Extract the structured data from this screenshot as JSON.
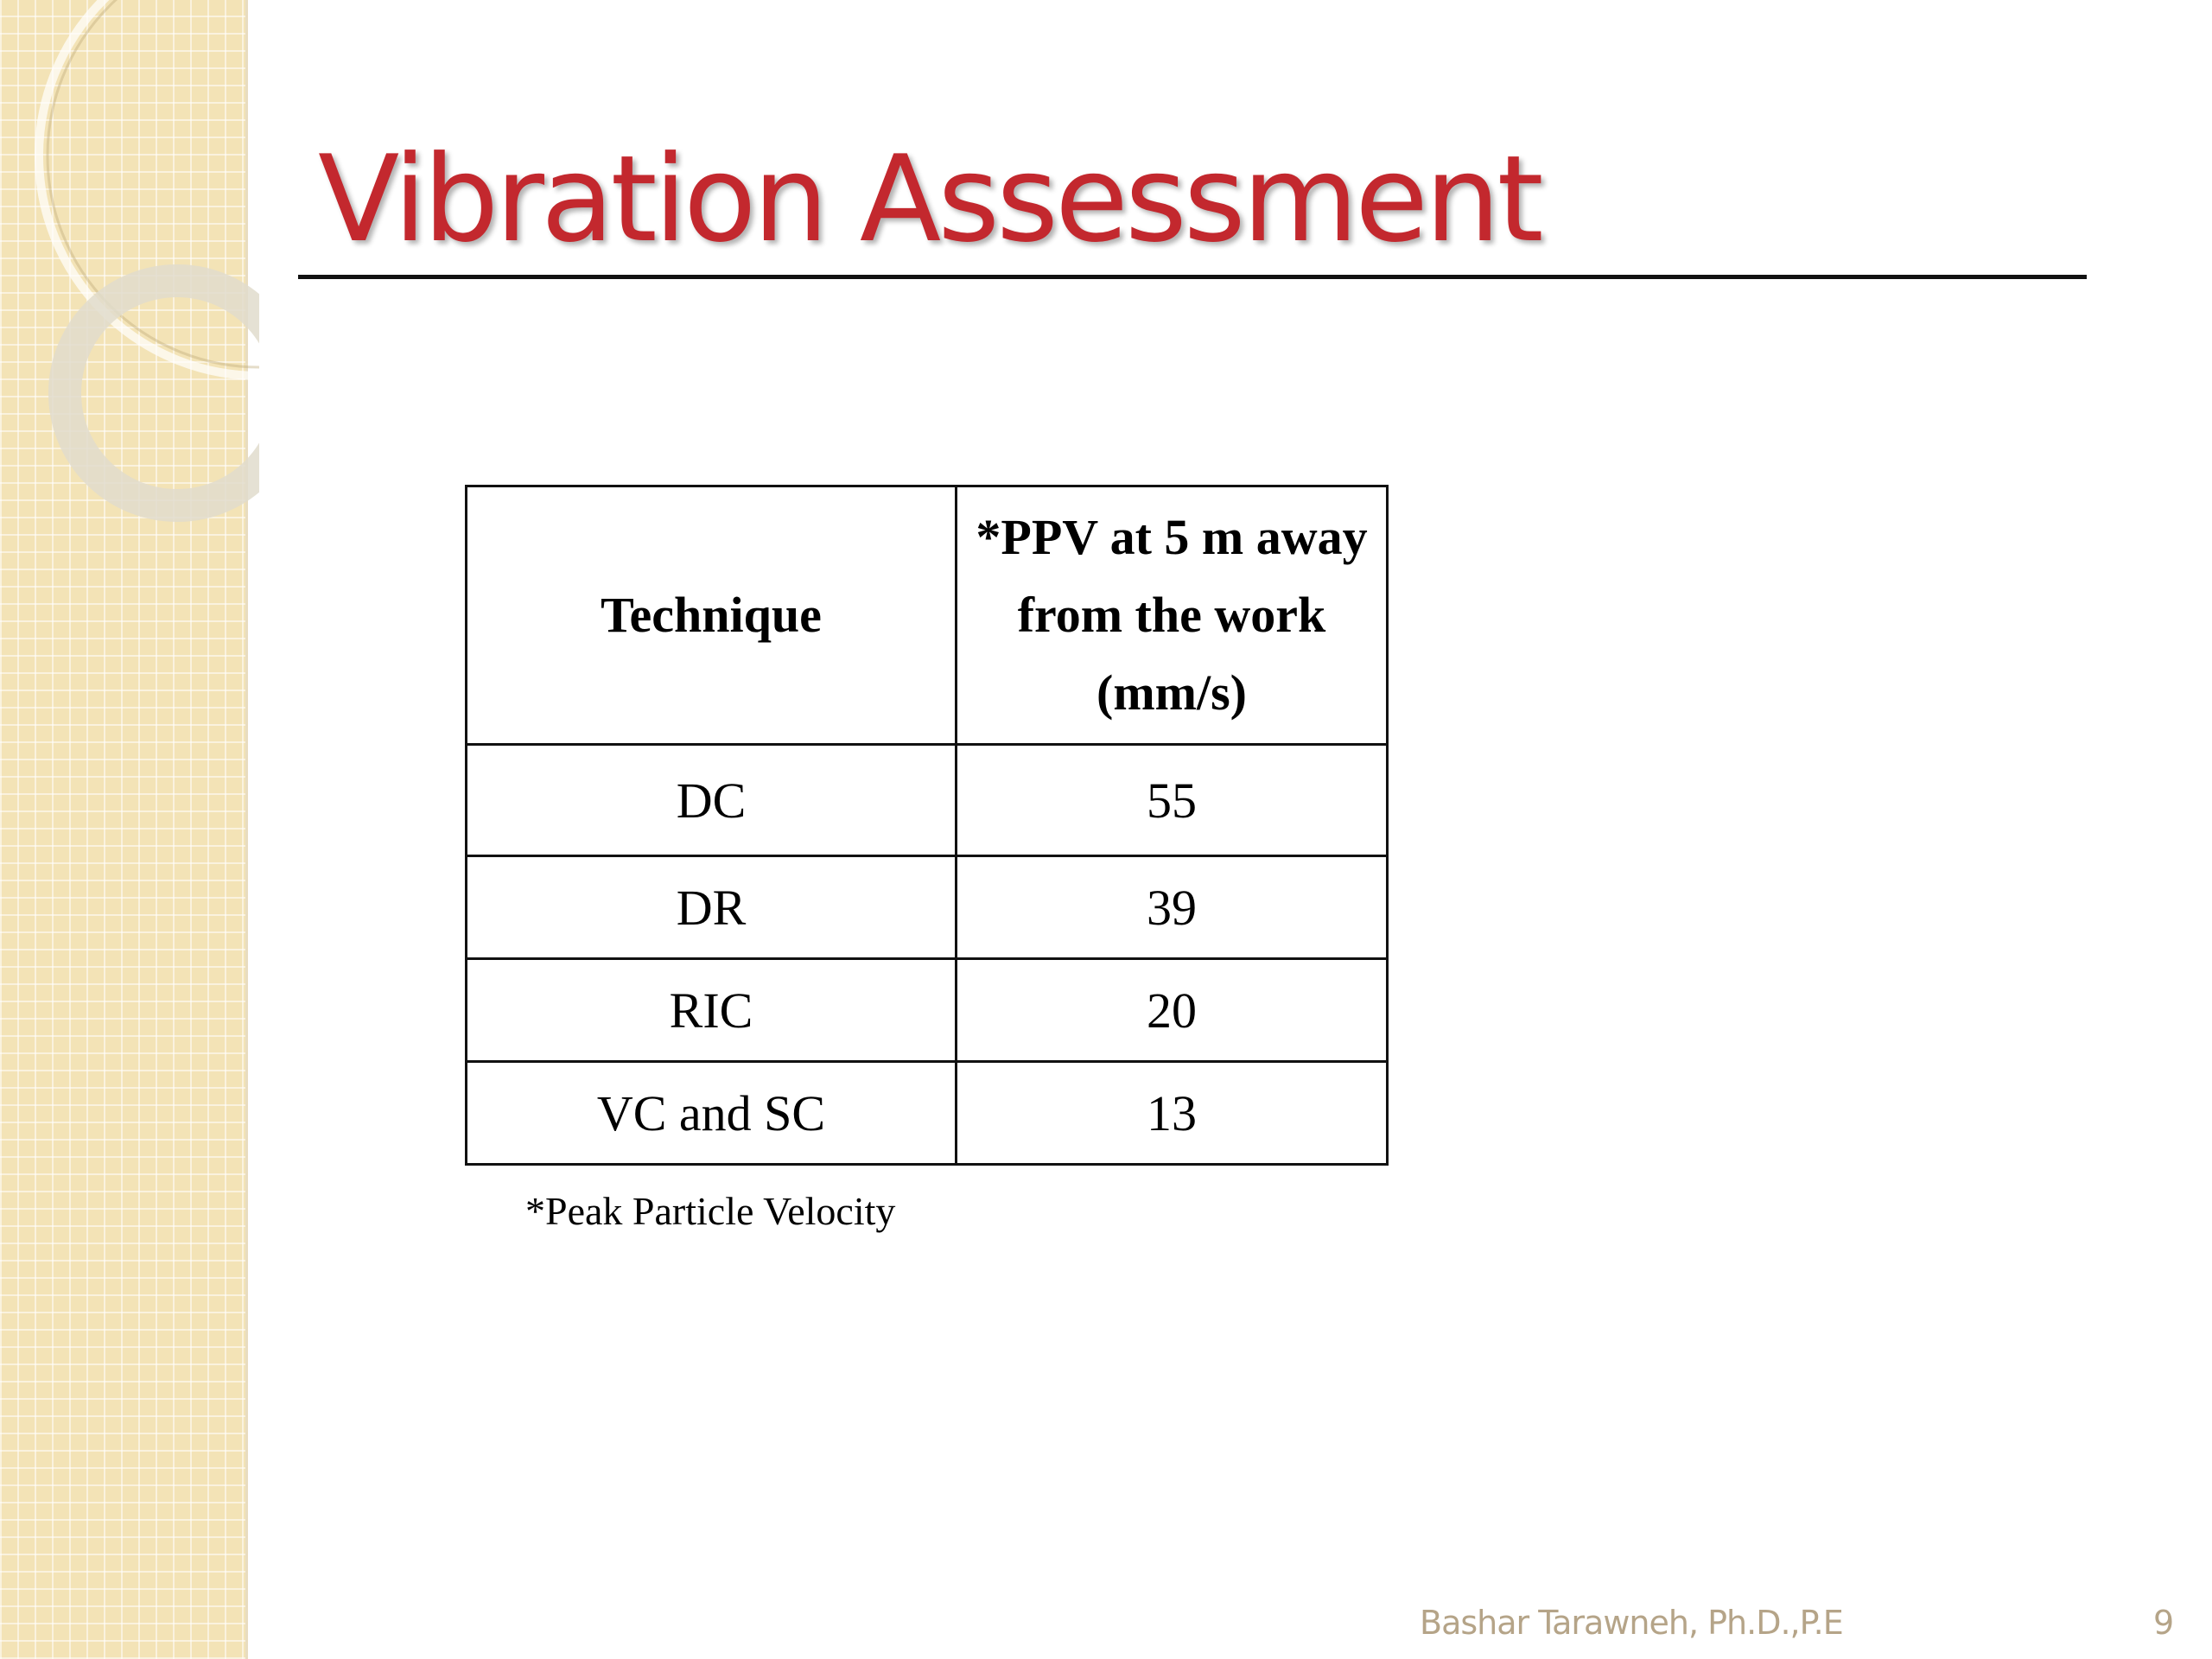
{
  "header": {
    "title": "Vibration Assessment"
  },
  "table": {
    "headers": [
      "Technique",
      "*PPV at 5 m away from the work (mm/s)"
    ],
    "rows": [
      [
        "DC",
        55
      ],
      [
        "DR",
        39
      ],
      [
        "RIC",
        20
      ],
      [
        "VC and SC",
        13
      ]
    ]
  },
  "footnote": "*Peak Particle Velocity",
  "footer": {
    "author": "Bashar Tarawneh, Ph.D.,P.E",
    "page_number": 9
  }
}
